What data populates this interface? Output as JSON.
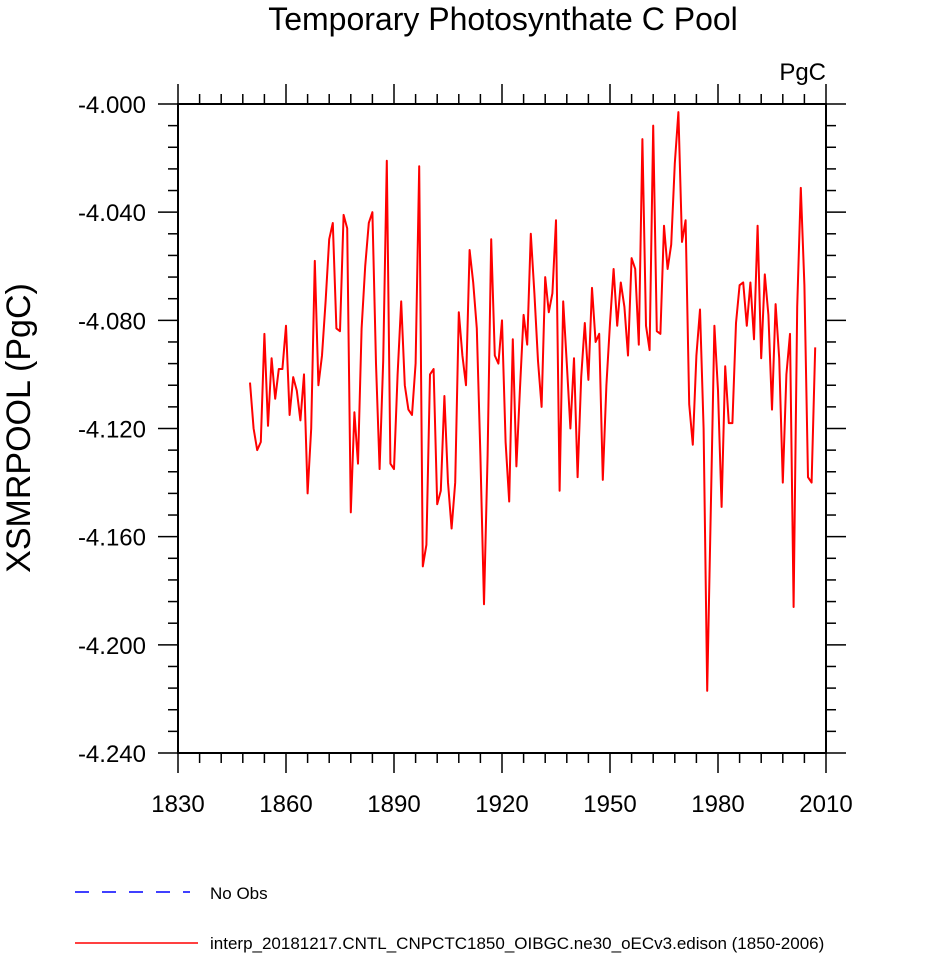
{
  "chart_data": {
    "type": "line",
    "title": "Temporary Photosynthate C Pool",
    "units": "PgC",
    "xlabel": "",
    "ylabel": "XSMRPOOL  (PgC)",
    "xlim": [
      1830,
      2010
    ],
    "ylim": [
      -4.24,
      -3.995
    ],
    "x_ticks": [
      1830,
      1860,
      1890,
      1920,
      1950,
      1980,
      2010
    ],
    "x_tick_labels": [
      "1830",
      "1860",
      "1890",
      "1920",
      "1950",
      "1980",
      "2010"
    ],
    "y_ticks": [
      -4.0,
      -4.04,
      -4.08,
      -4.12,
      -4.16,
      -4.2,
      -4.24
    ],
    "y_tick_labels": [
      "-4.000",
      "-4.040",
      "-4.080",
      "-4.120",
      "-4.160",
      "-4.200",
      "-4.240"
    ],
    "series": [
      {
        "name": "interp_20181217.CNTL_CNPCTC1850_OIBGC.ne30_oECv3.edison (1850-2006)",
        "color": "#ff0000",
        "dash": "solid",
        "x_start": 1850,
        "x_step": 1,
        "values": [
          -4.103,
          -4.12,
          -4.128,
          -4.125,
          -4.085,
          -4.119,
          -4.094,
          -4.109,
          -4.098,
          -4.098,
          -4.082,
          -4.115,
          -4.101,
          -4.106,
          -4.117,
          -4.1,
          -4.144,
          -4.12,
          -4.058,
          -4.104,
          -4.093,
          -4.073,
          -4.05,
          -4.044,
          -4.083,
          -4.084,
          -4.041,
          -4.046,
          -4.151,
          -4.114,
          -4.133,
          -4.083,
          -4.06,
          -4.044,
          -4.04,
          -4.096,
          -4.135,
          -4.095,
          -4.021,
          -4.133,
          -4.135,
          -4.1,
          -4.073,
          -4.104,
          -4.113,
          -4.115,
          -4.096,
          -4.023,
          -4.171,
          -4.163,
          -4.1,
          -4.098,
          -4.148,
          -4.143,
          -4.108,
          -4.14,
          -4.157,
          -4.14,
          -4.077,
          -4.093,
          -4.104,
          -4.054,
          -4.066,
          -4.083,
          -4.13,
          -4.185,
          -4.13,
          -4.05,
          -4.093,
          -4.096,
          -4.08,
          -4.125,
          -4.147,
          -4.087,
          -4.134,
          -4.105,
          -4.078,
          -4.089,
          -4.048,
          -4.07,
          -4.095,
          -4.112,
          -4.064,
          -4.077,
          -4.07,
          -4.043,
          -4.143,
          -4.073,
          -4.096,
          -4.12,
          -4.094,
          -4.138,
          -4.101,
          -4.081,
          -4.102,
          -4.068,
          -4.088,
          -4.085,
          -4.139,
          -4.104,
          -4.081,
          -4.061,
          -4.082,
          -4.066,
          -4.075,
          -4.093,
          -4.057,
          -4.061,
          -4.089,
          -4.013,
          -4.082,
          -4.091,
          -4.008,
          -4.084,
          -4.085,
          -4.045,
          -4.061,
          -4.052,
          -4.022,
          -4.003,
          -4.051,
          -4.043,
          -4.111,
          -4.126,
          -4.093,
          -4.076,
          -4.12,
          -4.217,
          -4.15,
          -4.082,
          -4.106,
          -4.149,
          -4.097,
          -4.118,
          -4.118,
          -4.081,
          -4.067,
          -4.066,
          -4.082,
          -4.066,
          -4.087,
          -4.045,
          -4.094,
          -4.063,
          -4.078,
          -4.113,
          -4.074,
          -4.094,
          -4.14,
          -4.1,
          -4.085,
          -4.186,
          -4.075,
          -4.031,
          -4.067,
          -4.138,
          -4.14,
          -4.09
        ]
      }
    ],
    "legend": [
      {
        "label": "No Obs",
        "color": "#0000ff",
        "dash": "dashed"
      },
      {
        "label": "interp_20181217.CNTL_CNPCTC1850_OIBGC.ne30_oECv3.edison (1850-2006)",
        "color": "#ff0000",
        "dash": "solid"
      }
    ],
    "legend_position": "bottom-left",
    "grid": false
  }
}
